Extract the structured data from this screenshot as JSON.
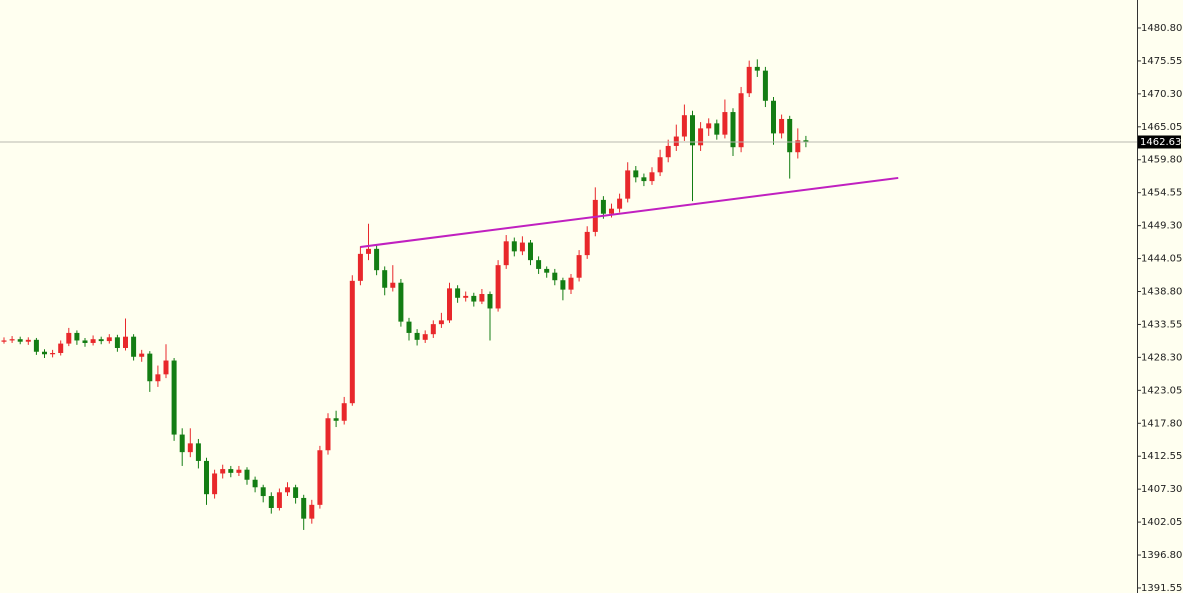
{
  "chart_data": {
    "type": "candlestick",
    "up_color": "#e8282b",
    "down_color": "#137d13",
    "open": [
      1430.8,
      1431.0,
      1431.2,
      1430.8,
      1431.1,
      1429.2,
      1428.8,
      1429.0,
      1430.5,
      1432.2,
      1431.0,
      1430.6,
      1431.2,
      1430.9,
      1431.5,
      1429.8,
      1431.6,
      1428.4,
      1428.9,
      1424.5,
      1425.6,
      1427.8,
      1416.0,
      1413.2,
      1414.6,
      1411.8,
      1406.5,
      1409.8,
      1410.5,
      1409.9,
      1410.4,
      1408.8,
      1407.6,
      1406.2,
      1404.3,
      1406.8,
      1407.6,
      1405.9,
      1402.6,
      1404.8,
      1413.5,
      1418.6,
      1418.2,
      1421.0,
      1440.5,
      1444.8,
      1445.6,
      1442.2,
      1439.4,
      1440.2,
      1434.0,
      1432.2,
      1431.1,
      1432.0,
      1433.6,
      1434.2,
      1439.3,
      1437.8,
      1438.1,
      1437.2,
      1438.4,
      1436.1,
      1443.0,
      1446.8,
      1445.2,
      1446.6,
      1443.8,
      1442.4,
      1441.8,
      1440.6,
      1439.1,
      1441.0,
      1444.6,
      1448.3,
      1453.4,
      1451.2,
      1452.0,
      1453.6,
      1458.1,
      1457.0,
      1456.4,
      1457.8,
      1460.2,
      1462.0,
      1463.5,
      1466.9,
      1462.1,
      1464.8,
      1465.6,
      1463.8,
      1467.4,
      1461.8,
      1470.4,
      1474.6,
      1474.0,
      1469.2,
      1464.0,
      1466.3,
      1461.0,
      1462.9
    ],
    "high": [
      1431.5,
      1431.7,
      1431.6,
      1431.5,
      1431.4,
      1429.6,
      1429.5,
      1431.0,
      1433.0,
      1432.6,
      1431.4,
      1431.8,
      1431.6,
      1432.0,
      1431.9,
      1434.5,
      1432.0,
      1429.5,
      1429.3,
      1427.0,
      1430.4,
      1428.2,
      1417.0,
      1417.0,
      1415.3,
      1412.3,
      1410.4,
      1411.2,
      1411.0,
      1411.0,
      1410.8,
      1409.3,
      1408.0,
      1406.8,
      1407.4,
      1408.4,
      1408.0,
      1406.4,
      1405.6,
      1414.2,
      1419.4,
      1419.8,
      1422.0,
      1441.4,
      1446.0,
      1449.6,
      1446.2,
      1442.8,
      1443.0,
      1440.8,
      1434.6,
      1432.8,
      1432.6,
      1434.2,
      1435.4,
      1440.2,
      1439.8,
      1438.8,
      1438.6,
      1439.2,
      1438.8,
      1443.8,
      1447.8,
      1447.4,
      1447.6,
      1447.0,
      1444.4,
      1442.8,
      1442.4,
      1441.0,
      1441.6,
      1445.4,
      1449.2,
      1455.4,
      1454.0,
      1452.8,
      1454.4,
      1459.4,
      1458.8,
      1457.6,
      1458.6,
      1461.4,
      1463.0,
      1465.4,
      1468.6,
      1467.6,
      1465.8,
      1466.4,
      1466.2,
      1469.4,
      1468.0,
      1471.4,
      1475.6,
      1475.8,
      1474.6,
      1469.8,
      1467.0,
      1466.8,
      1464.8,
      1463.6
    ],
    "low": [
      1430.5,
      1430.6,
      1430.4,
      1430.3,
      1428.7,
      1428.2,
      1428.3,
      1428.6,
      1430.1,
      1430.3,
      1430.0,
      1430.2,
      1430.4,
      1430.5,
      1429.2,
      1429.4,
      1427.8,
      1427.6,
      1422.8,
      1423.6,
      1425.0,
      1415.0,
      1411.0,
      1412.4,
      1410.6,
      1404.8,
      1405.8,
      1409.0,
      1409.2,
      1409.4,
      1408.0,
      1406.8,
      1405.2,
      1403.4,
      1403.9,
      1406.2,
      1405.0,
      1400.8,
      1401.8,
      1404.2,
      1412.8,
      1417.2,
      1417.6,
      1420.6,
      1439.8,
      1443.8,
      1441.4,
      1438.2,
      1438.8,
      1433.2,
      1431.0,
      1430.2,
      1430.6,
      1431.4,
      1433.0,
      1433.8,
      1437.0,
      1437.2,
      1436.4,
      1436.8,
      1431.0,
      1435.6,
      1442.4,
      1444.4,
      1444.6,
      1443.0,
      1441.6,
      1441.0,
      1439.8,
      1437.4,
      1438.4,
      1440.4,
      1444.0,
      1447.6,
      1450.4,
      1450.6,
      1451.4,
      1453.0,
      1456.2,
      1455.6,
      1455.8,
      1457.2,
      1459.4,
      1461.2,
      1462.8,
      1453.2,
      1461.2,
      1463.6,
      1463.0,
      1463.2,
      1460.4,
      1461.0,
      1469.8,
      1473.0,
      1468.2,
      1462.2,
      1463.2,
      1456.8,
      1460.0,
      1461.8
    ],
    "close": [
      1431.0,
      1431.2,
      1430.8,
      1431.1,
      1429.2,
      1428.8,
      1429.0,
      1430.5,
      1432.2,
      1431.0,
      1430.6,
      1431.2,
      1430.9,
      1431.5,
      1429.8,
      1431.6,
      1428.4,
      1428.9,
      1424.5,
      1425.6,
      1427.8,
      1416.0,
      1413.2,
      1414.6,
      1411.8,
      1406.5,
      1409.8,
      1410.5,
      1409.9,
      1410.4,
      1408.8,
      1407.6,
      1406.2,
      1404.3,
      1406.8,
      1407.6,
      1405.9,
      1402.6,
      1404.8,
      1413.5,
      1418.6,
      1418.2,
      1421.0,
      1440.5,
      1444.8,
      1445.6,
      1442.2,
      1439.4,
      1440.2,
      1434.0,
      1432.2,
      1431.1,
      1432.0,
      1433.6,
      1434.2,
      1439.3,
      1437.8,
      1438.1,
      1437.2,
      1438.4,
      1436.1,
      1443.0,
      1446.8,
      1445.2,
      1446.6,
      1443.8,
      1442.4,
      1441.8,
      1440.6,
      1439.1,
      1441.0,
      1444.6,
      1448.3,
      1453.4,
      1451.2,
      1452.0,
      1453.6,
      1458.1,
      1457.0,
      1456.4,
      1457.8,
      1460.2,
      1462.0,
      1463.5,
      1466.9,
      1462.1,
      1464.8,
      1465.6,
      1463.8,
      1467.4,
      1461.8,
      1470.4,
      1474.6,
      1474.0,
      1469.2,
      1464.0,
      1466.3,
      1461.0,
      1462.9,
      1462.63
    ],
    "last_price": 1462.63,
    "trendline": {
      "x": [
        44,
        110.4
      ],
      "y": [
        1445.9,
        1456.9
      ],
      "color": "#c020c0"
    },
    "ylim": [
      1390.75,
      1485.26
    ],
    "yticks": [
      {
        "value": 1480.8,
        "label": "1480.80"
      },
      1475.55,
      {
        "value": 1470.3,
        "label": "1470.30"
      },
      1465.05,
      {
        "value": 1459.8,
        "label": "1459.80"
      },
      1454.55,
      {
        "value": 1449.3,
        "label": "1449.30"
      },
      1444.05,
      {
        "value": 1438.8,
        "label": "1438.80"
      },
      1433.55,
      {
        "value": 1428.3,
        "label": "1428.30"
      },
      1423.05,
      {
        "value": 1417.8,
        "label": "1417.80"
      },
      1412.55,
      {
        "value": 1407.3,
        "label": "1407.30"
      },
      1402.05,
      {
        "value": 1396.8,
        "label": "1396.80"
      },
      1391.55
    ]
  }
}
